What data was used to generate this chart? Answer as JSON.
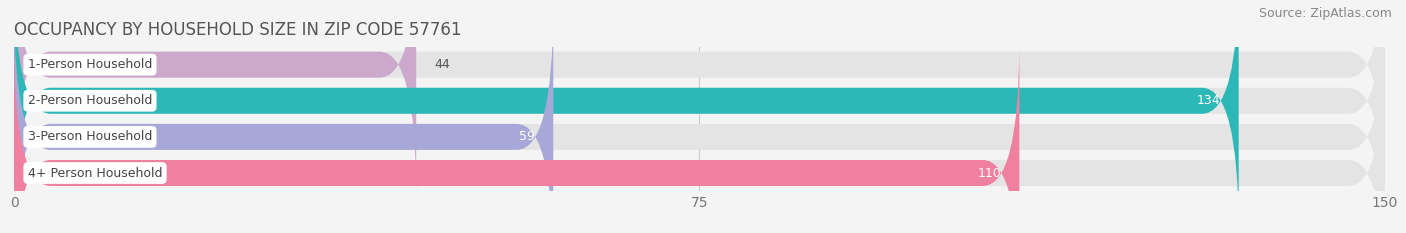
{
  "title": "OCCUPANCY BY HOUSEHOLD SIZE IN ZIP CODE 57761",
  "source": "Source: ZipAtlas.com",
  "categories": [
    "1-Person Household",
    "2-Person Household",
    "3-Person Household",
    "4+ Person Household"
  ],
  "values": [
    44,
    134,
    59,
    110
  ],
  "bar_colors": [
    "#cca8cc",
    "#2db8b8",
    "#a8a8d8",
    "#f080a0"
  ],
  "bar_bg_color": "#e4e4e4",
  "xlim": [
    0,
    150
  ],
  "xticks": [
    0,
    75,
    150
  ],
  "background_color": "#f4f4f4",
  "bar_height": 0.72,
  "title_fontsize": 12,
  "source_fontsize": 9,
  "tick_fontsize": 10,
  "label_fontsize": 9,
  "category_fontsize": 9
}
